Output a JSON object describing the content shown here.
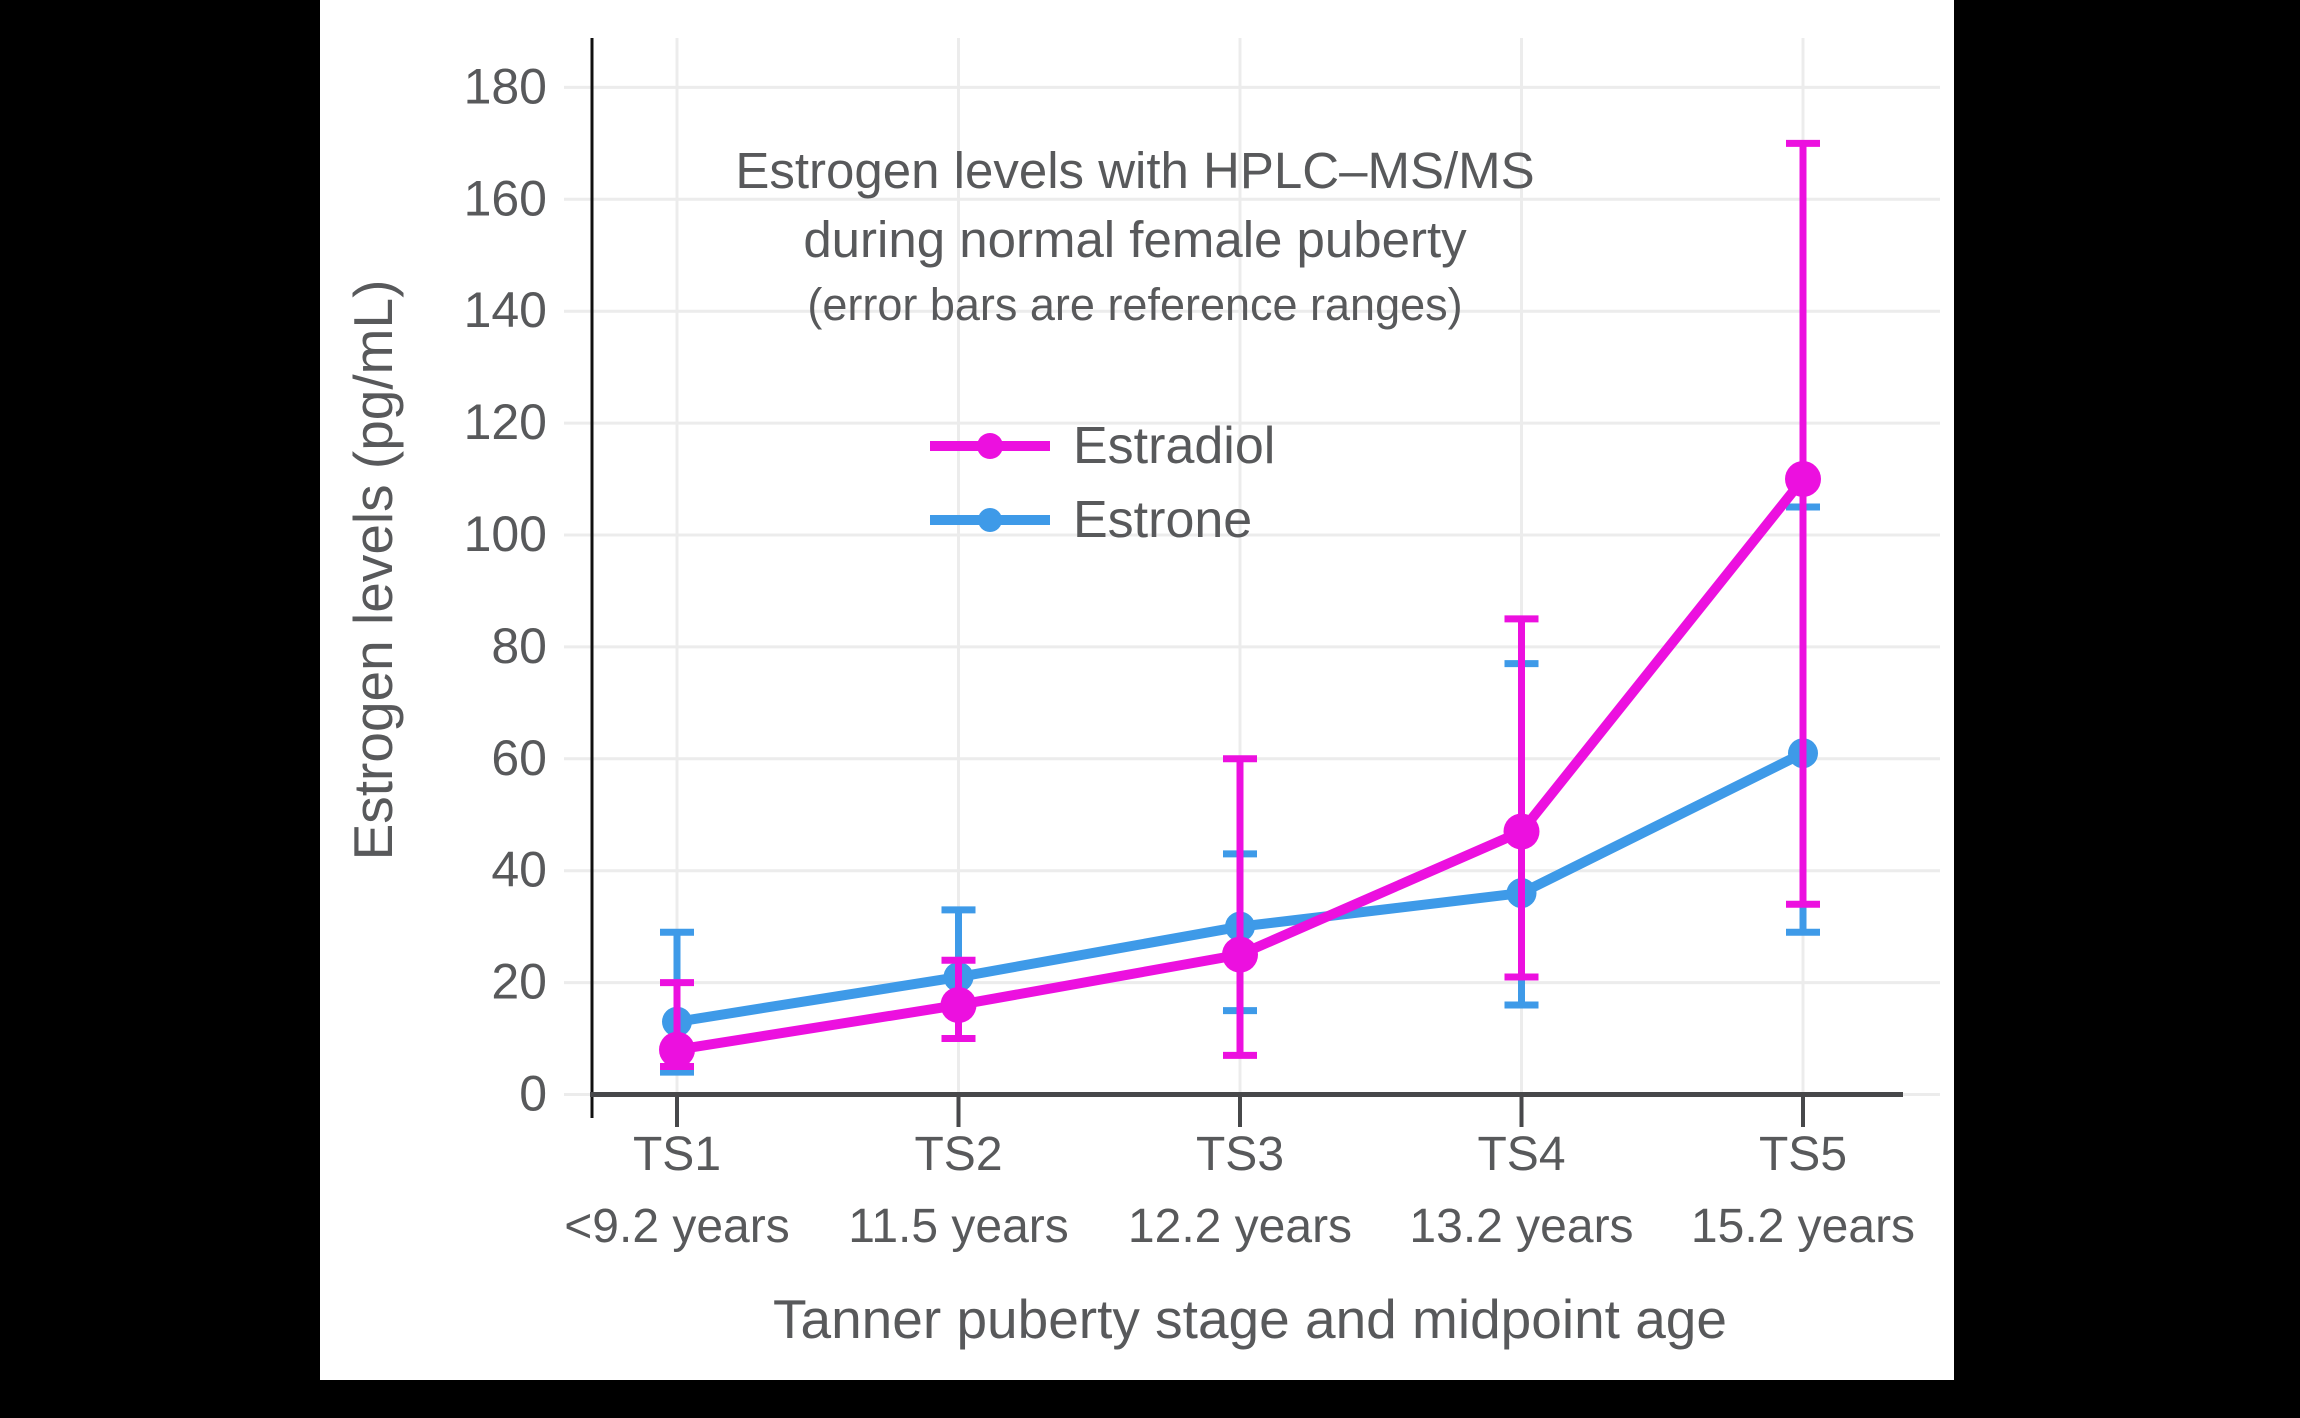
{
  "window": {
    "background": "#000000",
    "panel_background": "#ffffff"
  },
  "chart_data": {
    "type": "line",
    "title_line1": "Estrogen levels with HPLC–MS/MS",
    "title_line2": "during normal female puberty",
    "subtitle": "(error bars are reference ranges)",
    "ylabel": "Estrogen levels (pg/mL)",
    "xlabel": "Tanner puberty stage and midpoint age",
    "categories": [
      "TS1",
      "TS2",
      "TS3",
      "TS4",
      "TS5"
    ],
    "category_sublabels": [
      "<9.2 years",
      "11.5 years",
      "12.2 years",
      "13.2 years",
      "15.2 years"
    ],
    "yticks": [
      0,
      20,
      40,
      60,
      80,
      100,
      120,
      140,
      160,
      180
    ],
    "ylim": [
      0,
      189
    ],
    "grid": true,
    "legend_position": "upper-center",
    "error_bars": "reference ranges",
    "series": [
      {
        "name": "Estradiol",
        "color": "#EC10DF",
        "values": [
          8,
          16,
          25,
          47,
          110
        ],
        "err_low": [
          5,
          10,
          7,
          21,
          34
        ],
        "err_high": [
          20,
          24,
          60,
          85,
          170
        ]
      },
      {
        "name": "Estrone",
        "color": "#3E9AE8",
        "values": [
          13,
          21,
          30,
          36,
          61
        ],
        "err_low": [
          4,
          10,
          15,
          16,
          29
        ],
        "err_high": [
          29,
          33,
          43,
          77,
          105
        ]
      }
    ],
    "colors": {
      "text": "#58595b",
      "grid": "#ececec",
      "x_axis": "#47484a",
      "y_axis": "#101010"
    }
  }
}
